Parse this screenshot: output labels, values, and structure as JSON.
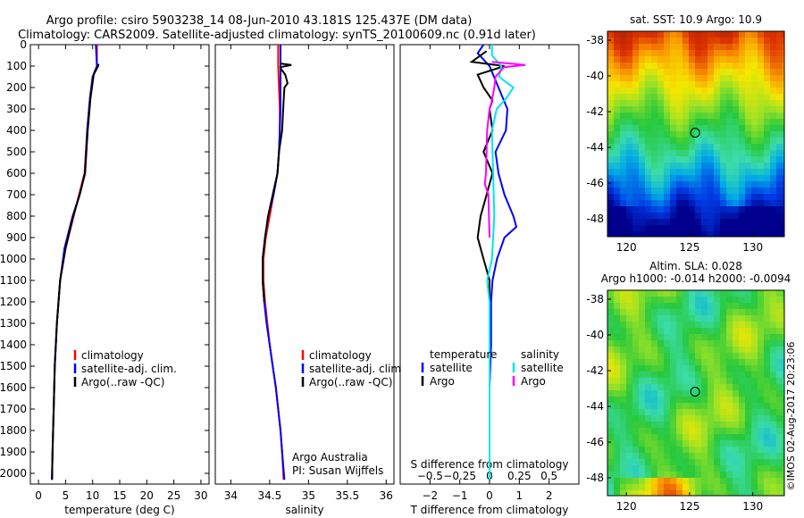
{
  "header": {
    "line1": "Argo profile: csiro 5903238_14 08-Jun-2010 43.181S 125.437E (DM data)",
    "line2": "Climatology: CARS2009. Satellite-adjusted climatology: synTS_20100609.nc (0.91d later)"
  },
  "stamp": "©IMOS 02-Aug-2017 20:23:06",
  "colors": {
    "climatology": "#ff0000",
    "satellite": "#0000ff",
    "argo": "#000000",
    "sat_salinity": "#00e5ee",
    "argo_salinity": "#ff00ff"
  },
  "chart_data": [
    {
      "type": "line",
      "name": "temperature",
      "xlabel": "temperature (deg C)",
      "ylabel": "",
      "xlim": [
        -1.5,
        31.5
      ],
      "ylim": [
        2050,
        0
      ],
      "xticks": [
        "0",
        "5",
        "10",
        "15",
        "20",
        "25",
        "30"
      ],
      "xtick_values": [
        0,
        5,
        10,
        15,
        20,
        25,
        30
      ],
      "yticks": [
        "0",
        "100",
        "200",
        "300",
        "400",
        "500",
        "600",
        "700",
        "800",
        "900",
        "1000",
        "1100",
        "1200",
        "1300",
        "1400",
        "1500",
        "1600",
        "1700",
        "1800",
        "1900",
        "2000"
      ],
      "ytick_values": [
        0,
        100,
        200,
        300,
        400,
        500,
        600,
        700,
        800,
        900,
        1000,
        1100,
        1200,
        1300,
        1400,
        1500,
        1600,
        1700,
        1800,
        1900,
        2000
      ],
      "legend": [
        "climatology",
        "satellite-adj. clim.",
        "Argo(..raw -QC)"
      ],
      "series": [
        {
          "name": "climatology",
          "color": "#ff0000",
          "points": [
            [
              10.8,
              0
            ],
            [
              10.8,
              100
            ],
            [
              10,
              150
            ],
            [
              9.5,
              250
            ],
            [
              9,
              400
            ],
            [
              8.5,
              600
            ],
            [
              7.5,
              700
            ],
            [
              6.5,
              800
            ],
            [
              5,
              950
            ],
            [
              4,
              1100
            ],
            [
              3.4,
              1300
            ],
            [
              3,
              1500
            ],
            [
              2.8,
              1700
            ],
            [
              2.6,
              1900
            ],
            [
              2.5,
              2030
            ]
          ]
        },
        {
          "name": "satellite-adj. clim.",
          "color": "#0000ff",
          "points": [
            [
              10.6,
              0
            ],
            [
              10.8,
              100
            ],
            [
              10,
              150
            ],
            [
              9.5,
              250
            ],
            [
              9,
              400
            ],
            [
              8.6,
              600
            ],
            [
              7.6,
              700
            ],
            [
              6.3,
              800
            ],
            [
              4.8,
              950
            ],
            [
              4,
              1100
            ],
            [
              3.4,
              1300
            ],
            [
              3,
              1500
            ],
            [
              2.8,
              1700
            ],
            [
              2.6,
              1900
            ],
            [
              2.5,
              2030
            ]
          ]
        },
        {
          "name": "Argo(..raw -QC)",
          "color": "#000000",
          "points": [
            [
              11.1,
              90
            ],
            [
              11,
              100
            ],
            [
              10.2,
              140
            ],
            [
              9.6,
              250
            ],
            [
              9.1,
              400
            ],
            [
              8.6,
              600
            ],
            [
              7.6,
              700
            ],
            [
              6.4,
              800
            ],
            [
              5,
              950
            ],
            [
              4,
              1100
            ],
            [
              3.4,
              1300
            ],
            [
              3,
              1500
            ],
            [
              2.8,
              1700
            ],
            [
              2.6,
              1900
            ],
            [
              2.5,
              2030
            ]
          ]
        }
      ]
    },
    {
      "type": "line",
      "name": "salinity",
      "xlabel": "salinity",
      "ylabel": "",
      "xlim": [
        33.8,
        36.1
      ],
      "ylim": [
        2050,
        0
      ],
      "xticks": [
        "34",
        "34.5",
        "35",
        "35.5",
        "36"
      ],
      "xtick_values": [
        34,
        34.5,
        35,
        35.5,
        36
      ],
      "legend": [
        "climatology",
        "satellite-adj. clim.",
        "Argo(..raw -QC)"
      ],
      "annotations": [
        "Argo Australia",
        "PI: Susan Wijffels"
      ],
      "series": [
        {
          "name": "climatology",
          "color": "#ff0000",
          "points": [
            [
              34.61,
              0
            ],
            [
              34.61,
              100
            ],
            [
              34.62,
              200
            ],
            [
              34.63,
              300
            ],
            [
              34.63,
              400
            ],
            [
              34.62,
              500
            ],
            [
              34.6,
              600
            ],
            [
              34.55,
              700
            ],
            [
              34.5,
              800
            ],
            [
              34.45,
              900
            ],
            [
              34.42,
              1000
            ],
            [
              34.42,
              1100
            ],
            [
              34.44,
              1200
            ],
            [
              34.47,
              1300
            ],
            [
              34.5,
              1400
            ],
            [
              34.54,
              1500
            ],
            [
              34.58,
              1600
            ],
            [
              34.61,
              1700
            ],
            [
              34.64,
              1800
            ],
            [
              34.66,
              1900
            ],
            [
              34.68,
              2030
            ]
          ]
        },
        {
          "name": "satellite-adj. clim.",
          "color": "#0000ff",
          "points": [
            [
              34.64,
              0
            ],
            [
              34.64,
              100
            ],
            [
              34.64,
              200
            ],
            [
              34.64,
              300
            ],
            [
              34.63,
              400
            ],
            [
              34.62,
              500
            ],
            [
              34.6,
              600
            ],
            [
              34.55,
              700
            ],
            [
              34.48,
              800
            ],
            [
              34.44,
              900
            ],
            [
              34.41,
              1000
            ],
            [
              34.41,
              1100
            ],
            [
              34.43,
              1200
            ],
            [
              34.46,
              1300
            ],
            [
              34.5,
              1400
            ],
            [
              34.54,
              1500
            ],
            [
              34.58,
              1600
            ],
            [
              34.61,
              1700
            ],
            [
              34.64,
              1800
            ],
            [
              34.66,
              1900
            ],
            [
              34.69,
              2030
            ]
          ]
        },
        {
          "name": "Argo(..raw -QC)",
          "color": "#000000",
          "points": [
            [
              34.64,
              88
            ],
            [
              34.78,
              95
            ],
            [
              34.64,
              105
            ],
            [
              34.65,
              115
            ],
            [
              34.7,
              140
            ],
            [
              34.73,
              180
            ],
            [
              34.69,
              200
            ],
            [
              34.68,
              260
            ],
            [
              34.66,
              400
            ],
            [
              34.62,
              500
            ],
            [
              34.6,
              600
            ],
            [
              34.54,
              700
            ],
            [
              34.48,
              800
            ],
            [
              34.44,
              900
            ],
            [
              34.41,
              1000
            ],
            [
              34.41,
              1100
            ],
            [
              34.43,
              1200
            ]
          ]
        }
      ]
    },
    {
      "type": "line",
      "name": "differences",
      "xlabel": "T difference from climatology",
      "xlabel2": "S difference from climatology",
      "xlim_T": [
        -3,
        3
      ],
      "xlim_S": [
        -0.75,
        0.75
      ],
      "xticks_T": [
        "−2",
        "−1",
        "0",
        "1",
        "2"
      ],
      "xtick_values_T": [
        -2,
        -1,
        0,
        1,
        2
      ],
      "xticks_S": [
        "−0.5",
        "−0.25",
        "0",
        "0.25",
        "0.5"
      ],
      "xtick_values_S": [
        -0.5,
        -0.25,
        0,
        0.25,
        0.5
      ],
      "legend_T_title": "temperature",
      "legend_S_title": "salinity",
      "legend": [
        "satellite",
        "Argo",
        "satellite",
        "Argo"
      ],
      "series": [
        {
          "name": "temperature satellite",
          "axis": "T",
          "color": "#0000ff",
          "points": [
            [
              -0.2,
              0
            ],
            [
              -0.4,
              40
            ],
            [
              0,
              100
            ],
            [
              0.3,
              200
            ],
            [
              0.6,
              300
            ],
            [
              0.55,
              400
            ],
            [
              0.2,
              500
            ],
            [
              0.3,
              600
            ],
            [
              0.5,
              700
            ],
            [
              0.8,
              800
            ],
            [
              0.9,
              850
            ],
            [
              0.5,
              900
            ],
            [
              0.25,
              1000
            ],
            [
              0.1,
              1100
            ],
            [
              0.05,
              1200
            ],
            [
              0.05,
              1400
            ],
            [
              0,
              1600
            ],
            [
              0,
              1800
            ],
            [
              0,
              2030
            ]
          ]
        },
        {
          "name": "temperature Argo",
          "axis": "T",
          "color": "#000000",
          "points": [
            [
              -0.1,
              30
            ],
            [
              -0.6,
              80
            ],
            [
              0.5,
              100
            ],
            [
              -0.4,
              140
            ],
            [
              -0.2,
              200
            ],
            [
              0.1,
              260
            ],
            [
              0,
              300
            ],
            [
              0.1,
              400
            ],
            [
              -0.2,
              500
            ],
            [
              0.1,
              600
            ],
            [
              -0.1,
              700
            ],
            [
              -0.3,
              800
            ],
            [
              -0.4,
              900
            ],
            [
              -0.2,
              1000
            ],
            [
              -0.1,
              1050
            ],
            [
              0,
              1100
            ],
            [
              0,
              1300
            ],
            [
              0,
              1500
            ],
            [
              0,
              2030
            ]
          ]
        },
        {
          "name": "salinity satellite",
          "axis": "S",
          "color": "#00e5ee",
          "points": [
            [
              0.02,
              0
            ],
            [
              0.02,
              50
            ],
            [
              0.1,
              100
            ],
            [
              0.08,
              150
            ],
            [
              0.2,
              200
            ],
            [
              0.14,
              250
            ],
            [
              0.06,
              300
            ],
            [
              0.02,
              400
            ],
            [
              0.03,
              600
            ],
            [
              0.04,
              800
            ],
            [
              0.02,
              1000
            ],
            [
              -0.02,
              1100
            ],
            [
              0,
              1200
            ],
            [
              0,
              1400
            ],
            [
              0,
              1600
            ],
            [
              0,
              2030
            ]
          ]
        },
        {
          "name": "salinity Argo",
          "axis": "S",
          "color": "#ff00ff",
          "points": [
            [
              0.02,
              80
            ],
            [
              0.3,
              95
            ],
            [
              0.12,
              105
            ],
            [
              0.05,
              150
            ],
            [
              0.04,
              200
            ],
            [
              0.02,
              260
            ],
            [
              0,
              300
            ],
            [
              -0.02,
              400
            ],
            [
              -0.03,
              600
            ],
            [
              -0.04,
              650
            ],
            [
              -0.01,
              700
            ],
            [
              0,
              900
            ]
          ]
        }
      ]
    },
    {
      "type": "heatmap",
      "name": "sst-map",
      "title": "sat. SST: 10.9 Argo: 10.9",
      "xticks": [
        "120",
        "125",
        "130"
      ],
      "xtick_values": [
        120,
        125,
        130
      ],
      "yticks": [
        "-38",
        "-40",
        "-42",
        "-44",
        "-46",
        "-48"
      ],
      "ytick_values": [
        -38,
        -40,
        -42,
        -44,
        -46,
        -48
      ],
      "xlim": [
        118.5,
        132.5
      ],
      "ylim": [
        -49,
        -37.5
      ],
      "marker": [
        125.437,
        -43.181
      ]
    },
    {
      "type": "heatmap",
      "name": "sla-map",
      "title": "Altim. SLA: 0.028",
      "subtitle": "Argo h1000: -0.014 h2000: -0.0094",
      "xticks": [
        "120",
        "125",
        "130"
      ],
      "xtick_values": [
        120,
        125,
        130
      ],
      "yticks": [
        "-38",
        "-40",
        "-42",
        "-44",
        "-46",
        "-48"
      ],
      "ytick_values": [
        -38,
        -40,
        -42,
        -44,
        -46,
        -48
      ],
      "xlim": [
        118.5,
        132.5
      ],
      "ylim": [
        -49,
        -37.5
      ],
      "marker": [
        125.437,
        -43.181
      ]
    }
  ]
}
